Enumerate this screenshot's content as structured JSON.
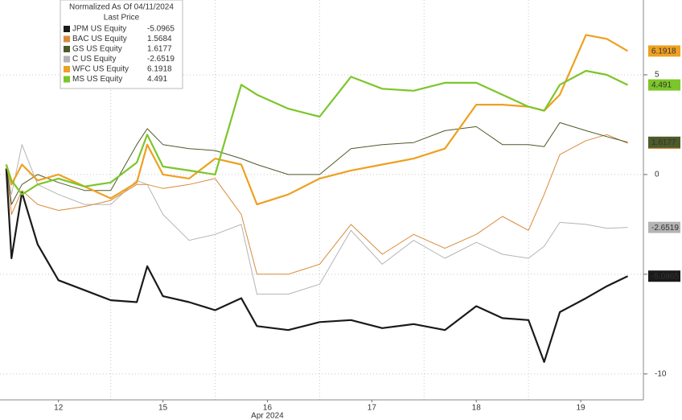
{
  "chart_data": {
    "type": "line",
    "legend_title": "Normalized As Of 04/11/2024",
    "legend_subtitle": "Last Price",
    "legend_position": "top-left",
    "x_annotation": "Apr 2024",
    "grid": true,
    "x": [
      0,
      0.05,
      0.15,
      0.3,
      0.5,
      0.75,
      1.0,
      1.25,
      1.35,
      1.5,
      1.75,
      2.0,
      2.25,
      2.4,
      2.7,
      3.0,
      3.3,
      3.6,
      3.9,
      4.2,
      4.5,
      4.75,
      5.0,
      5.15,
      5.3,
      5.55,
      5.75,
      5.95
    ],
    "xlim": [
      -0.06,
      6.1
    ],
    "xticks": [
      {
        "value": 0.5,
        "label": "12"
      },
      {
        "value": 1.5,
        "label": "15"
      },
      {
        "value": 2.5,
        "label": "16"
      },
      {
        "value": 3.5,
        "label": "17"
      },
      {
        "value": 4.5,
        "label": "18"
      },
      {
        "value": 5.5,
        "label": "19"
      }
    ],
    "ylim": [
      -11.3,
      8.75
    ],
    "yticks": [
      5,
      0,
      -5,
      -10
    ],
    "series": [
      {
        "name": "JPM US Equity",
        "last": -5.0965,
        "color": "#1a1a1a",
        "width": 2.2,
        "tag_text": "#1a1a1a",
        "values": [
          0.3,
          -4.2,
          -0.9,
          -3.5,
          -5.3,
          -5.8,
          -6.3,
          -6.4,
          -4.6,
          -6.1,
          -6.4,
          -6.8,
          -6.2,
          -7.6,
          -7.8,
          -7.4,
          -7.3,
          -7.7,
          -7.5,
          -7.8,
          -6.6,
          -7.2,
          -7.3,
          -9.4,
          -6.9,
          -6.2,
          -5.6,
          -5.0965
        ]
      },
      {
        "name": "BAC US Equity",
        "last": 1.5684,
        "color": "#d98a3a",
        "width": 1,
        "tag_text": "#1a1a1a",
        "values": [
          0.5,
          -2.0,
          -0.8,
          -1.5,
          -1.8,
          -1.6,
          -1.3,
          -0.5,
          -0.5,
          -0.7,
          -0.5,
          -0.2,
          -2.0,
          -5.0,
          -5.0,
          -4.5,
          -2.5,
          -4.0,
          -3.0,
          -3.7,
          -3.0,
          -2.1,
          -2.8,
          -1.0,
          1.0,
          1.7,
          2.0,
          1.5684
        ]
      },
      {
        "name": "GS US Equity",
        "last": 1.6177,
        "color": "#4d5a2a",
        "width": 1,
        "tag_text": "#ffffff",
        "values": [
          0.5,
          -1.5,
          -0.5,
          0,
          -0.4,
          -0.8,
          -0.8,
          1.5,
          2.3,
          1.5,
          1.3,
          1.2,
          0.8,
          0.5,
          0.0,
          0.0,
          1.3,
          1.5,
          1.6,
          2.2,
          2.4,
          1.5,
          1.5,
          1.4,
          2.6,
          2.2,
          1.9,
          1.6177
        ]
      },
      {
        "name": "C US Equity",
        "last": -2.6519,
        "color": "#b4b4b4",
        "width": 1,
        "tag_text": "#1a1a1a",
        "values": [
          0.5,
          -1.0,
          1.5,
          -0.5,
          -1.0,
          -1.5,
          -1.5,
          -0.3,
          -0.5,
          -2.0,
          -3.3,
          -3.0,
          -2.5,
          -6.0,
          -6.0,
          -5.5,
          -2.8,
          -4.5,
          -3.3,
          -4.2,
          -3.4,
          -4.0,
          -4.2,
          -3.6,
          -2.4,
          -2.5,
          -2.7,
          -2.6519
        ]
      },
      {
        "name": "WFC US Equity",
        "last": 6.1918,
        "color": "#eea020",
        "width": 2.2,
        "tag_text": "#1a1a1a",
        "values": [
          0.5,
          -0.5,
          0.5,
          -0.3,
          0.0,
          -0.6,
          -1.2,
          -0.4,
          1.5,
          0.0,
          -0.2,
          0.8,
          0.5,
          -1.5,
          -1.0,
          -0.2,
          0.2,
          0.5,
          0.8,
          1.3,
          3.5,
          3.5,
          3.4,
          3.2,
          4.0,
          7.0,
          6.8,
          6.1918
        ]
      },
      {
        "name": "MS US Equity",
        "last": 4.491,
        "color": "#7cc62a",
        "width": 2.2,
        "tag_text": "#1a1a1a",
        "values": [
          0.5,
          -0.3,
          -1.0,
          -0.5,
          -0.2,
          -0.6,
          -0.4,
          0.6,
          2.0,
          0.4,
          0.2,
          0.0,
          4.5,
          4.0,
          3.3,
          2.9,
          4.9,
          4.3,
          4.2,
          4.6,
          4.6,
          4.0,
          3.4,
          3.2,
          4.5,
          5.2,
          5.0,
          4.491
        ]
      }
    ]
  }
}
